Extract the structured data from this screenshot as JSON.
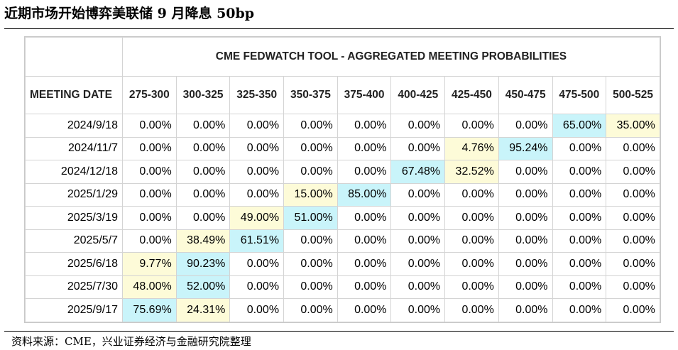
{
  "title": "近期市场开始博弈美联储 9 月降息 50bp",
  "source": "资料来源：CME，兴业证券经济与金融研究院整理",
  "colors": {
    "max_highlight": "#c9f4fa",
    "second_highlight": "#fdfbd8",
    "grid": "#d4d4d4"
  },
  "chart_data": {
    "type": "table",
    "title": "CME FEDWATCH TOOL - AGGREGATED MEETING PROBABILITIES",
    "row_header": "MEETING DATE",
    "columns": [
      "275-300",
      "300-325",
      "325-350",
      "350-375",
      "375-400",
      "400-425",
      "425-450",
      "450-475",
      "475-500",
      "500-525"
    ],
    "rows": [
      {
        "date": "2024/9/18",
        "values": [
          "0.00%",
          "0.00%",
          "0.00%",
          "0.00%",
          "0.00%",
          "0.00%",
          "0.00%",
          "0.00%",
          "65.00%",
          "35.00%"
        ],
        "highlights": [
          "",
          "",
          "",
          "",
          "",
          "",
          "",
          "",
          "cyan",
          "yellow"
        ]
      },
      {
        "date": "2024/11/7",
        "values": [
          "0.00%",
          "0.00%",
          "0.00%",
          "0.00%",
          "0.00%",
          "0.00%",
          "4.76%",
          "95.24%",
          "0.00%",
          "0.00%"
        ],
        "highlights": [
          "",
          "",
          "",
          "",
          "",
          "",
          "yellow",
          "cyan",
          "",
          ""
        ]
      },
      {
        "date": "2024/12/18",
        "values": [
          "0.00%",
          "0.00%",
          "0.00%",
          "0.00%",
          "0.00%",
          "67.48%",
          "32.52%",
          "0.00%",
          "0.00%",
          "0.00%"
        ],
        "highlights": [
          "",
          "",
          "",
          "",
          "",
          "cyan",
          "yellow",
          "",
          "",
          ""
        ]
      },
      {
        "date": "2025/1/29",
        "values": [
          "0.00%",
          "0.00%",
          "0.00%",
          "15.00%",
          "85.00%",
          "0.00%",
          "0.00%",
          "0.00%",
          "0.00%",
          "0.00%"
        ],
        "highlights": [
          "",
          "",
          "",
          "yellow",
          "cyan",
          "",
          "",
          "",
          "",
          ""
        ]
      },
      {
        "date": "2025/3/19",
        "values": [
          "0.00%",
          "0.00%",
          "49.00%",
          "51.00%",
          "0.00%",
          "0.00%",
          "0.00%",
          "0.00%",
          "0.00%",
          "0.00%"
        ],
        "highlights": [
          "",
          "",
          "yellow",
          "cyan",
          "",
          "",
          "",
          "",
          "",
          ""
        ]
      },
      {
        "date": "2025/5/7",
        "values": [
          "0.00%",
          "38.49%",
          "61.51%",
          "0.00%",
          "0.00%",
          "0.00%",
          "0.00%",
          "0.00%",
          "0.00%",
          "0.00%"
        ],
        "highlights": [
          "",
          "yellow",
          "cyan",
          "",
          "",
          "",
          "",
          "",
          "",
          ""
        ]
      },
      {
        "date": "2025/6/18",
        "values": [
          "9.77%",
          "90.23%",
          "0.00%",
          "0.00%",
          "0.00%",
          "0.00%",
          "0.00%",
          "0.00%",
          "0.00%",
          "0.00%"
        ],
        "highlights": [
          "yellow",
          "cyan",
          "",
          "",
          "",
          "",
          "",
          "",
          "",
          ""
        ]
      },
      {
        "date": "2025/7/30",
        "values": [
          "48.00%",
          "52.00%",
          "0.00%",
          "0.00%",
          "0.00%",
          "0.00%",
          "0.00%",
          "0.00%",
          "0.00%",
          "0.00%"
        ],
        "highlights": [
          "yellow",
          "cyan",
          "",
          "",
          "",
          "",
          "",
          "",
          "",
          ""
        ]
      },
      {
        "date": "2025/9/17",
        "values": [
          "75.69%",
          "24.31%",
          "0.00%",
          "0.00%",
          "0.00%",
          "0.00%",
          "0.00%",
          "0.00%",
          "0.00%",
          "0.00%"
        ],
        "highlights": [
          "cyan",
          "yellow",
          "",
          "",
          "",
          "",
          "",
          "",
          "",
          ""
        ]
      }
    ]
  }
}
